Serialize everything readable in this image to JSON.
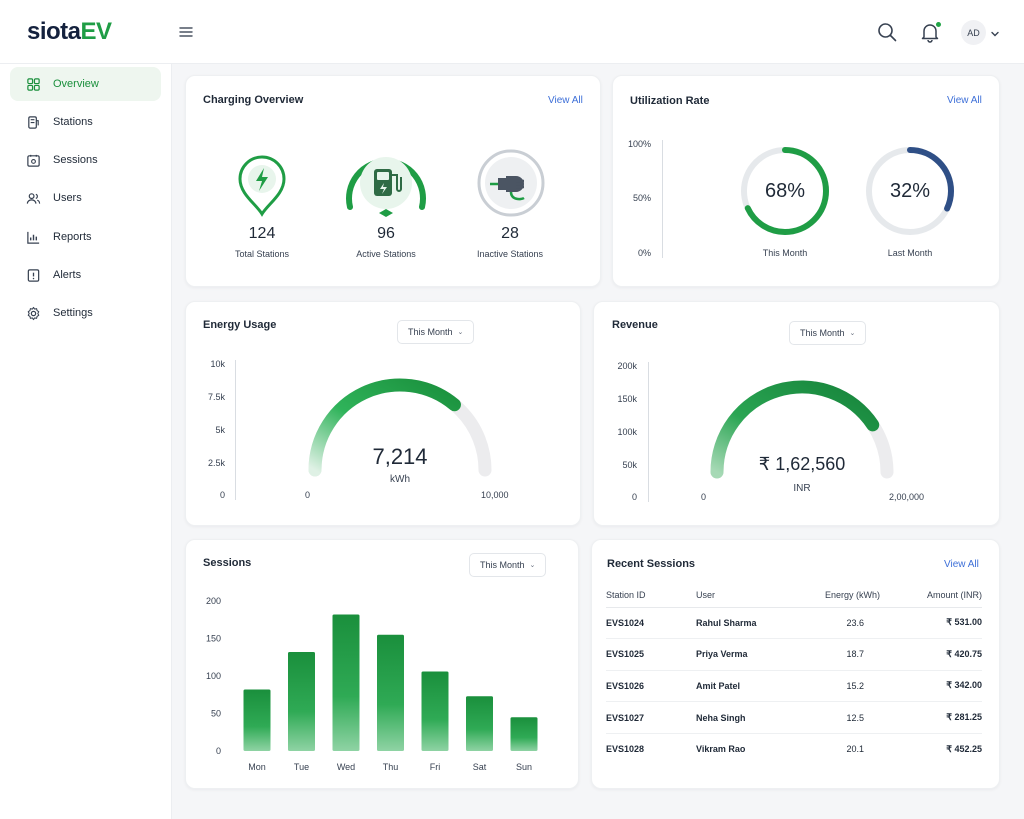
{
  "brand": {
    "name_main": "siota",
    "name_accent": "EV"
  },
  "header": {
    "avatar_initials": "AD"
  },
  "sidebar": {
    "items": [
      {
        "label": "Overview",
        "icon": "overview-icon",
        "active": true
      },
      {
        "label": "Stations",
        "icon": "stations-icon",
        "active": false
      },
      {
        "label": "Sessions",
        "icon": "sessions-icon",
        "active": false
      },
      {
        "label": "Users",
        "icon": "users-icon",
        "active": false
      },
      {
        "label": "Reports",
        "icon": "reports-icon",
        "active": false
      },
      {
        "label": "Alerts",
        "icon": "alerts-icon",
        "active": false
      },
      {
        "label": "Settings",
        "icon": "settings-icon",
        "active": false
      }
    ]
  },
  "charging_overview": {
    "title": "Charging Overview",
    "view_all": "View All",
    "items": [
      {
        "value": "124",
        "label": "Total Stations",
        "icon": "lightning-pin-icon"
      },
      {
        "value": "96",
        "label": "Active Stations",
        "icon": "ev-charger-icon"
      },
      {
        "value": "28",
        "label": "Inactive Stations",
        "icon": "plug-icon"
      }
    ]
  },
  "utilization": {
    "title": "Utilization Rate",
    "view_all": "View All",
    "axis": [
      "100%",
      "50%",
      "0%"
    ],
    "rings": [
      {
        "value": 68,
        "display": "68%",
        "label": "This Month",
        "color": "#1f9d45"
      },
      {
        "value": 32,
        "display": "32%",
        "label": "Last Month",
        "color": "#2f4f86"
      }
    ]
  },
  "energy_usage": {
    "title": "Energy Usage",
    "period": "This Month",
    "axis": [
      "10k",
      "7.5k",
      "5k",
      "2.5k",
      "0"
    ],
    "value": 7214,
    "max": 10000,
    "display": "7,214",
    "unit": "kWh",
    "min_label": "0",
    "max_label": "10,000"
  },
  "revenue": {
    "title": "Revenue",
    "period": "This Month",
    "axis": [
      "200k",
      "150k",
      "100k",
      "50k",
      "0"
    ],
    "value": 162560,
    "max": 200000,
    "display": "₹ 1,62,560",
    "unit": "INR",
    "min_label": "0",
    "max_label": "2,00,000"
  },
  "sessions": {
    "title": "Sessions",
    "period": "This Month"
  },
  "chart_data": {
    "type": "bar",
    "categories": [
      "Mon",
      "Tue",
      "Wed",
      "Thu",
      "Fri",
      "Sat",
      "Sun"
    ],
    "values": [
      82,
      132,
      182,
      155,
      106,
      73,
      45
    ],
    "ylim": [
      0,
      200
    ],
    "yticks": [
      "200",
      "150",
      "100",
      "50",
      "0"
    ],
    "title": "Sessions",
    "xlabel": "",
    "ylabel": "",
    "grid": false
  },
  "recent_sessions": {
    "title": "Recent Sessions",
    "view_all": "View All",
    "columns": [
      "Station ID",
      "User",
      "Energy (kWh)",
      "Amount (INR)"
    ],
    "rows": [
      [
        "EVS1024",
        "Rahul Sharma",
        "23.6",
        "₹ 531.00"
      ],
      [
        "EVS1025",
        "Priya Verma",
        "18.7",
        "₹ 420.75"
      ],
      [
        "EVS1026",
        "Amit Patel",
        "15.2",
        "₹ 342.00"
      ],
      [
        "EVS1027",
        "Neha Singh",
        "12.5",
        "₹ 281.25"
      ],
      [
        "EVS1028",
        "Vikram Rao",
        "20.1",
        "₹ 452.25"
      ]
    ]
  },
  "colors": {
    "accent": "#1f9d45",
    "link": "#3d6fd8"
  }
}
